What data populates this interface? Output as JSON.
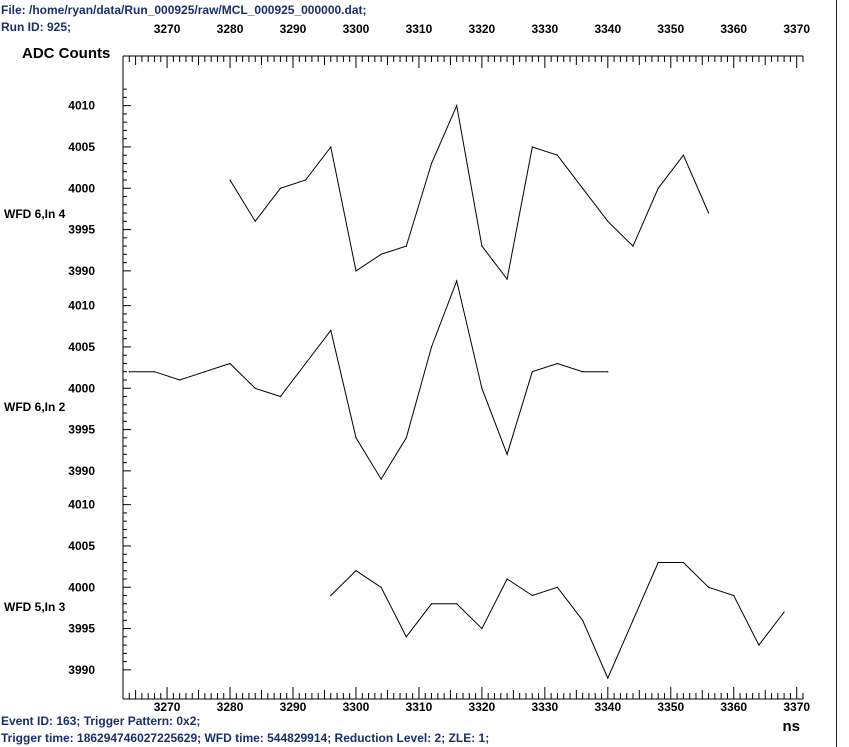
{
  "header": {
    "file": "File: /home/ryan/data/Run_000925/raw/MCL_000925_000000.dat;",
    "run_id": "Run ID: 925;"
  },
  "footer": {
    "event_line": "Event ID: 163;  Trigger Pattern: 0x2;",
    "trigger_line": "Trigger time: 186294746027225629; WFD time: 544829914; Reduction Level: 2; ZLE: 1;"
  },
  "colors": {
    "header_text": "#1a2f6b",
    "axis": "#000000",
    "trace": "#000000"
  },
  "chart_data": {
    "type": "line",
    "ylabel": "ADC Counts",
    "xlabel": "ns",
    "xlim": [
      3263,
      3371
    ],
    "x_ticks": [
      3270,
      3280,
      3290,
      3300,
      3310,
      3320,
      3330,
      3340,
      3350,
      3360,
      3370
    ],
    "panels": [
      {
        "label": "WFD 6,In 4",
        "ylim": [
          3989.5,
          4012.5
        ],
        "y_ticks": [
          3990,
          3995,
          4000,
          4005,
          4010
        ],
        "x": [
          3280,
          3284,
          3288,
          3292,
          3296,
          3300,
          3304,
          3308,
          3312,
          3316,
          3320,
          3324,
          3328,
          3332,
          3336,
          3340,
          3344,
          3348,
          3352,
          3356
        ],
        "values": [
          4001,
          3996,
          4000,
          4001,
          4005,
          3990,
          3992,
          3993,
          4003,
          4010,
          3993,
          3989,
          4005,
          4004,
          4000,
          3996,
          3993,
          4000,
          4004,
          3997
        ]
      },
      {
        "label": "WFD 6,In 2",
        "ylim": [
          3989.5,
          4012.5
        ],
        "y_ticks": [
          3990,
          3995,
          4000,
          4005,
          4010
        ],
        "x": [
          3264,
          3268,
          3272,
          3276,
          3280,
          3284,
          3288,
          3292,
          3296,
          3300,
          3304,
          3308,
          3312,
          3316,
          3320,
          3324,
          3328,
          3332,
          3336,
          3340
        ],
        "values": [
          4002,
          4002,
          4001,
          4002,
          4003,
          4000,
          3999,
          4003,
          4007,
          3994,
          3989,
          3994,
          4005,
          4013,
          4000,
          3992,
          4002,
          4003,
          4002,
          4002
        ]
      },
      {
        "label": "WFD 5,In 3",
        "ylim": [
          3989.5,
          4012.5
        ],
        "y_ticks": [
          3990,
          3995,
          4000,
          4005,
          4010
        ],
        "x": [
          3296,
          3300,
          3304,
          3308,
          3312,
          3316,
          3320,
          3324,
          3328,
          3332,
          3336,
          3340,
          3344,
          3348,
          3352,
          3356,
          3360,
          3364,
          3368
        ],
        "values": [
          3999,
          4002,
          4000,
          3994,
          3998,
          3998,
          3995,
          4001,
          3999,
          4000,
          3996,
          3989,
          3996,
          4003,
          4003,
          4000,
          3999,
          3993,
          3997
        ]
      }
    ]
  }
}
